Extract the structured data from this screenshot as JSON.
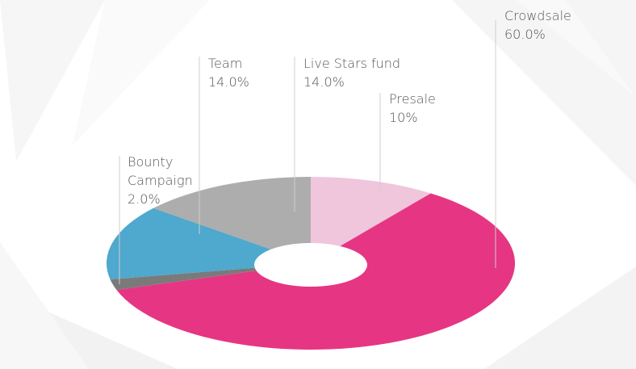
{
  "chart_data": {
    "type": "pie",
    "style": "donut-3d",
    "slices": [
      {
        "label": "Crowdsale",
        "value": 60.0,
        "display": "60.0%",
        "color": "#e63583"
      },
      {
        "label": "Bounty Campaign",
        "value": 2.0,
        "display": "2.0%",
        "color": "#7a7a7a"
      },
      {
        "label": "Team",
        "value": 14.0,
        "display": "14.0%",
        "color": "#4fa8cd"
      },
      {
        "label": "Live Stars fund",
        "value": 14.0,
        "display": "14.0%",
        "color": "#adadad"
      },
      {
        "label": "Presale",
        "value": 10,
        "display": "10%",
        "color": "#efc6dc"
      }
    ],
    "labels": [
      {
        "name": "crowdsale",
        "title": "Crowdsale",
        "value": "60.0%"
      },
      {
        "name": "live-stars-fund",
        "title": "Live Stars fund",
        "value": "14.0%"
      },
      {
        "name": "team",
        "title": "Team",
        "value": "14.0%"
      },
      {
        "name": "presale",
        "title": "Presale",
        "value": "10%"
      },
      {
        "name": "bounty-campaign",
        "title": "Bounty\nCampaign",
        "value": "2.0%"
      }
    ]
  }
}
